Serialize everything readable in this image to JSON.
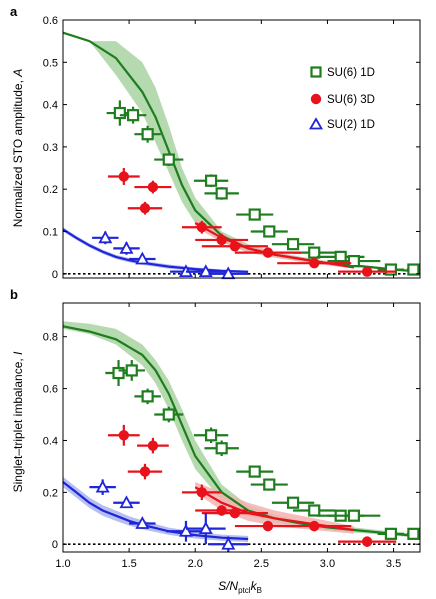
{
  "figure": {
    "xlabel_main": "S/N",
    "xlabel_sub": "ptcl",
    "xlabel_k": "k",
    "xlabel_ksub": "B",
    "legend": [
      {
        "label": "SU(6) 1D",
        "marker": "open-square",
        "color": "#1e7d1e"
      },
      {
        "label": "SU(6) 3D",
        "marker": "filled-circle",
        "color": "#e8121a"
      },
      {
        "label": "SU(2) 1D",
        "marker": "open-triangle",
        "color": "#1f25d8"
      }
    ]
  },
  "chart_data": [
    {
      "panel": "a",
      "type": "scatter",
      "ylabel_main": "Normalized STO amplitude, ",
      "ylabel_var": "A",
      "xlim": [
        1.0,
        3.7
      ],
      "ylim": [
        -0.01,
        0.6
      ],
      "xticks": [
        1.0,
        1.5,
        2.0,
        2.5,
        3.0,
        3.5
      ],
      "yticks": [
        0,
        0.1,
        0.2,
        0.3,
        0.4,
        0.5,
        0.6
      ],
      "ytick_labels": [
        "0",
        "0.1",
        "0.2",
        "0.3",
        "0.4",
        "0.5",
        "0.6"
      ],
      "zero_line": true,
      "series": [
        {
          "name": "SU(6) 1D",
          "marker": "open-square",
          "color": "#1e7d1e",
          "points": [
            {
              "x": 1.43,
              "y": 0.38,
              "xerr": 0.1,
              "yerr": 0.03
            },
            {
              "x": 1.53,
              "y": 0.375,
              "xerr": 0.1,
              "yerr": 0.02
            },
            {
              "x": 1.64,
              "y": 0.33,
              "xerr": 0.1,
              "yerr": 0.02
            },
            {
              "x": 1.8,
              "y": 0.27,
              "xerr": 0.11,
              "yerr": 0.015
            },
            {
              "x": 2.12,
              "y": 0.22,
              "xerr": 0.13,
              "yerr": 0.015
            },
            {
              "x": 2.2,
              "y": 0.19,
              "xerr": 0.13,
              "yerr": 0.015
            },
            {
              "x": 2.45,
              "y": 0.14,
              "xerr": 0.14,
              "yerr": 0.01
            },
            {
              "x": 2.56,
              "y": 0.1,
              "xerr": 0.14,
              "yerr": 0.01
            },
            {
              "x": 2.74,
              "y": 0.07,
              "xerr": 0.16,
              "yerr": 0.01
            },
            {
              "x": 2.9,
              "y": 0.05,
              "xerr": 0.16,
              "yerr": 0.01
            },
            {
              "x": 3.1,
              "y": 0.04,
              "xerr": 0.18,
              "yerr": 0.01
            },
            {
              "x": 3.2,
              "y": 0.03,
              "xerr": 0.2,
              "yerr": 0.01
            },
            {
              "x": 3.48,
              "y": 0.01,
              "xerr": 0.1,
              "yerr": 0.01
            },
            {
              "x": 3.65,
              "y": 0.01,
              "xerr": 0.05,
              "yerr": 0.01
            }
          ]
        },
        {
          "name": "SU(6) 3D",
          "marker": "filled-circle",
          "color": "#e8121a",
          "points": [
            {
              "x": 1.46,
              "y": 0.23,
              "xerr": 0.12,
              "yerr": 0.02
            },
            {
              "x": 1.68,
              "y": 0.205,
              "xerr": 0.14,
              "yerr": 0.015
            },
            {
              "x": 1.62,
              "y": 0.155,
              "xerr": 0.13,
              "yerr": 0.015
            },
            {
              "x": 2.05,
              "y": 0.11,
              "xerr": 0.15,
              "yerr": 0.015
            },
            {
              "x": 2.2,
              "y": 0.08,
              "xerr": 0.2,
              "yerr": 0.015
            },
            {
              "x": 2.3,
              "y": 0.065,
              "xerr": 0.25,
              "yerr": 0.01
            },
            {
              "x": 2.55,
              "y": 0.05,
              "xerr": 0.25,
              "yerr": 0.01
            },
            {
              "x": 2.9,
              "y": 0.025,
              "xerr": 0.28,
              "yerr": 0.01
            },
            {
              "x": 3.3,
              "y": 0.005,
              "xerr": 0.22,
              "yerr": 0.01
            }
          ]
        },
        {
          "name": "SU(2) 1D",
          "marker": "open-triangle",
          "color": "#1f25d8",
          "points": [
            {
              "x": 1.32,
              "y": 0.085,
              "xerr": 0.1,
              "yerr": 0.015
            },
            {
              "x": 1.48,
              "y": 0.06,
              "xerr": 0.1,
              "yerr": 0.015
            },
            {
              "x": 1.6,
              "y": 0.035,
              "xerr": 0.1,
              "yerr": 0.01
            },
            {
              "x": 1.93,
              "y": 0.005,
              "xerr": 0.12,
              "yerr": 0.01
            },
            {
              "x": 2.08,
              "y": 0.005,
              "xerr": 0.15,
              "yerr": 0.01
            },
            {
              "x": 2.25,
              "y": 0.0,
              "xerr": 0.15,
              "yerr": 0.01
            }
          ]
        }
      ],
      "theory": [
        {
          "name": "SU(6) 1D",
          "color": "#1e7d1e",
          "band": "#a9d4a1",
          "x": [
            1.0,
            1.2,
            1.4,
            1.6,
            1.7,
            1.8,
            1.9,
            2.0,
            2.2,
            2.4,
            2.6,
            2.8,
            3.0,
            3.2,
            3.5,
            3.7
          ],
          "y": [
            0.57,
            0.55,
            0.51,
            0.43,
            0.37,
            0.29,
            0.21,
            0.15,
            0.09,
            0.06,
            0.045,
            0.035,
            0.025,
            0.02,
            0.01,
            0.005
          ],
          "band_lo": [
            0.57,
            0.55,
            0.47,
            0.38,
            0.31,
            0.24,
            0.17,
            0.12,
            0.075,
            0.05,
            0.04,
            0.03,
            0.02,
            0.015,
            0.008,
            0.005
          ],
          "band_hi": [
            0.57,
            0.55,
            0.55,
            0.5,
            0.44,
            0.35,
            0.25,
            0.18,
            0.1,
            0.07,
            0.05,
            0.04,
            0.03,
            0.02,
            0.012,
            0.006
          ]
        },
        {
          "name": "SU(6) 3D",
          "color": "#e8121a",
          "band": "#f4b2b2",
          "x": [
            2.0,
            2.2,
            2.4,
            2.6,
            2.8,
            3.0,
            3.2
          ],
          "y": [
            0.12,
            0.085,
            0.06,
            0.045,
            0.035,
            0.025,
            0.015
          ],
          "band_lo": [
            0.11,
            0.075,
            0.05,
            0.038,
            0.028,
            0.02,
            0.012
          ],
          "band_hi": [
            0.13,
            0.095,
            0.07,
            0.052,
            0.04,
            0.03,
            0.018
          ]
        },
        {
          "name": "SU(2) 1D",
          "color": "#1f25d8",
          "band": "#a9b4ee",
          "x": [
            1.0,
            1.1,
            1.2,
            1.3,
            1.4,
            1.5,
            1.6,
            1.8,
            2.0,
            2.2,
            2.4
          ],
          "y": [
            0.105,
            0.085,
            0.067,
            0.052,
            0.04,
            0.032,
            0.026,
            0.017,
            0.011,
            0.007,
            0.005
          ],
          "band_lo": [
            0.1,
            0.08,
            0.062,
            0.047,
            0.035,
            0.027,
            0.021,
            0.012,
            0.007,
            0.004,
            0.003
          ],
          "band_hi": [
            0.11,
            0.09,
            0.072,
            0.057,
            0.045,
            0.037,
            0.031,
            0.022,
            0.015,
            0.01,
            0.007
          ]
        }
      ]
    },
    {
      "panel": "b",
      "type": "scatter",
      "ylabel_main": "Singlet–triplet imbalance, ",
      "ylabel_var": "I",
      "xlim": [
        1.0,
        3.7
      ],
      "ylim": [
        -0.03,
        0.93
      ],
      "xticks": [
        1.0,
        1.5,
        2.0,
        2.5,
        3.0,
        3.5
      ],
      "xtick_labels": [
        "1.0",
        "1.5",
        "2.0",
        "2.5",
        "3.0",
        "3.5"
      ],
      "yticks": [
        0,
        0.2,
        0.4,
        0.6,
        0.8
      ],
      "ytick_labels": [
        "0",
        "0.2",
        "0.4",
        "0.6",
        "0.8"
      ],
      "zero_line": true,
      "series": [
        {
          "name": "SU(6) 1D",
          "marker": "open-square",
          "color": "#1e7d1e",
          "points": [
            {
              "x": 1.42,
              "y": 0.66,
              "xerr": 0.1,
              "yerr": 0.05
            },
            {
              "x": 1.52,
              "y": 0.67,
              "xerr": 0.1,
              "yerr": 0.04
            },
            {
              "x": 1.64,
              "y": 0.57,
              "xerr": 0.1,
              "yerr": 0.03
            },
            {
              "x": 1.8,
              "y": 0.5,
              "xerr": 0.11,
              "yerr": 0.03
            },
            {
              "x": 2.12,
              "y": 0.42,
              "xerr": 0.13,
              "yerr": 0.03
            },
            {
              "x": 2.2,
              "y": 0.37,
              "xerr": 0.13,
              "yerr": 0.03
            },
            {
              "x": 2.45,
              "y": 0.28,
              "xerr": 0.14,
              "yerr": 0.02
            },
            {
              "x": 2.56,
              "y": 0.23,
              "xerr": 0.14,
              "yerr": 0.02
            },
            {
              "x": 2.74,
              "y": 0.16,
              "xerr": 0.16,
              "yerr": 0.02
            },
            {
              "x": 2.9,
              "y": 0.13,
              "xerr": 0.16,
              "yerr": 0.02
            },
            {
              "x": 3.1,
              "y": 0.11,
              "xerr": 0.18,
              "yerr": 0.02
            },
            {
              "x": 3.2,
              "y": 0.11,
              "xerr": 0.2,
              "yerr": 0.02
            },
            {
              "x": 3.48,
              "y": 0.04,
              "xerr": 0.1,
              "yerr": 0.02
            },
            {
              "x": 3.65,
              "y": 0.04,
              "xerr": 0.05,
              "yerr": 0.02
            }
          ]
        },
        {
          "name": "SU(6) 3D",
          "marker": "filled-circle",
          "color": "#e8121a",
          "points": [
            {
              "x": 1.46,
              "y": 0.42,
              "xerr": 0.12,
              "yerr": 0.04
            },
            {
              "x": 1.68,
              "y": 0.38,
              "xerr": 0.12,
              "yerr": 0.03
            },
            {
              "x": 1.62,
              "y": 0.28,
              "xerr": 0.13,
              "yerr": 0.03
            },
            {
              "x": 2.05,
              "y": 0.2,
              "xerr": 0.15,
              "yerr": 0.03
            },
            {
              "x": 2.2,
              "y": 0.13,
              "xerr": 0.2,
              "yerr": 0.02
            },
            {
              "x": 2.3,
              "y": 0.12,
              "xerr": 0.25,
              "yerr": 0.02
            },
            {
              "x": 2.55,
              "y": 0.07,
              "xerr": 0.25,
              "yerr": 0.02
            },
            {
              "x": 2.9,
              "y": 0.07,
              "xerr": 0.28,
              "yerr": 0.02
            },
            {
              "x": 3.3,
              "y": 0.01,
              "xerr": 0.22,
              "yerr": 0.02
            }
          ]
        },
        {
          "name": "SU(2) 1D",
          "marker": "open-triangle",
          "color": "#1f25d8",
          "points": [
            {
              "x": 1.3,
              "y": 0.22,
              "xerr": 0.1,
              "yerr": 0.03
            },
            {
              "x": 1.48,
              "y": 0.16,
              "xerr": 0.1,
              "yerr": 0.02
            },
            {
              "x": 1.6,
              "y": 0.08,
              "xerr": 0.1,
              "yerr": 0.02
            },
            {
              "x": 1.93,
              "y": 0.05,
              "xerr": 0.15,
              "yerr": 0.04
            },
            {
              "x": 2.08,
              "y": 0.06,
              "xerr": 0.15,
              "yerr": 0.06
            },
            {
              "x": 2.25,
              "y": 0.0,
              "xerr": 0.15,
              "yerr": 0.03
            }
          ]
        }
      ],
      "theory": [
        {
          "name": "SU(6) 1D",
          "color": "#1e7d1e",
          "band": "#a9d4a1",
          "x": [
            1.0,
            1.2,
            1.4,
            1.6,
            1.7,
            1.8,
            1.9,
            2.0,
            2.2,
            2.4,
            2.6,
            2.8,
            3.0,
            3.2,
            3.5,
            3.7
          ],
          "y": [
            0.84,
            0.82,
            0.79,
            0.73,
            0.67,
            0.58,
            0.46,
            0.34,
            0.2,
            0.13,
            0.1,
            0.08,
            0.065,
            0.055,
            0.04,
            0.03
          ],
          "band_lo": [
            0.83,
            0.81,
            0.77,
            0.69,
            0.62,
            0.52,
            0.4,
            0.29,
            0.17,
            0.11,
            0.085,
            0.07,
            0.055,
            0.045,
            0.033,
            0.025
          ],
          "band_hi": [
            0.86,
            0.85,
            0.83,
            0.77,
            0.71,
            0.63,
            0.52,
            0.4,
            0.23,
            0.15,
            0.115,
            0.09,
            0.075,
            0.065,
            0.048,
            0.036
          ]
        },
        {
          "name": "SU(6) 3D",
          "color": "#e8121a",
          "band": "#f4b2b2",
          "x": [
            2.0,
            2.2,
            2.4,
            2.6,
            2.8,
            3.0,
            3.2
          ],
          "y": [
            0.22,
            0.16,
            0.12,
            0.1,
            0.085,
            0.07,
            0.055
          ],
          "band_lo": [
            0.2,
            0.13,
            0.09,
            0.07,
            0.06,
            0.05,
            0.04
          ],
          "band_hi": [
            0.24,
            0.2,
            0.16,
            0.13,
            0.11,
            0.09,
            0.07
          ]
        },
        {
          "name": "SU(2) 1D",
          "color": "#1f25d8",
          "band": "#a9b4ee",
          "x": [
            1.0,
            1.1,
            1.2,
            1.3,
            1.4,
            1.5,
            1.6,
            1.8,
            2.0,
            2.2,
            2.4
          ],
          "y": [
            0.24,
            0.2,
            0.16,
            0.13,
            0.11,
            0.09,
            0.075,
            0.05,
            0.035,
            0.025,
            0.02
          ],
          "band_lo": [
            0.22,
            0.18,
            0.14,
            0.11,
            0.09,
            0.072,
            0.058,
            0.036,
            0.022,
            0.013,
            0.008
          ],
          "band_hi": [
            0.26,
            0.22,
            0.18,
            0.15,
            0.13,
            0.108,
            0.092,
            0.064,
            0.048,
            0.037,
            0.032
          ]
        }
      ]
    }
  ]
}
